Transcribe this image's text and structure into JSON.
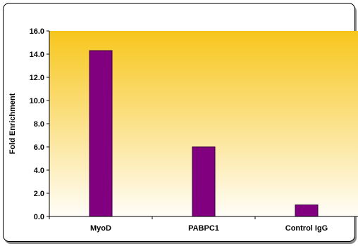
{
  "chart_data": {
    "type": "bar",
    "title": "",
    "xlabel": "",
    "ylabel": "Fold Enrichment",
    "categories": [
      "MyoD",
      "PABPC1",
      "Control IgG"
    ],
    "values": [
      14.3,
      6.0,
      1.0
    ],
    "ylim": [
      0,
      16
    ],
    "yticks": [
      "0.0",
      "2.0",
      "4.0",
      "6.0",
      "8.0",
      "10.0",
      "12.0",
      "14.0",
      "16.0"
    ],
    "legend": "none",
    "grid": false,
    "colors": {
      "bar_fill": "#800080",
      "bar_stroke": "#3a003a",
      "bg_top": "#f7c61c",
      "bg_bottom": "#fffdf8"
    }
  }
}
